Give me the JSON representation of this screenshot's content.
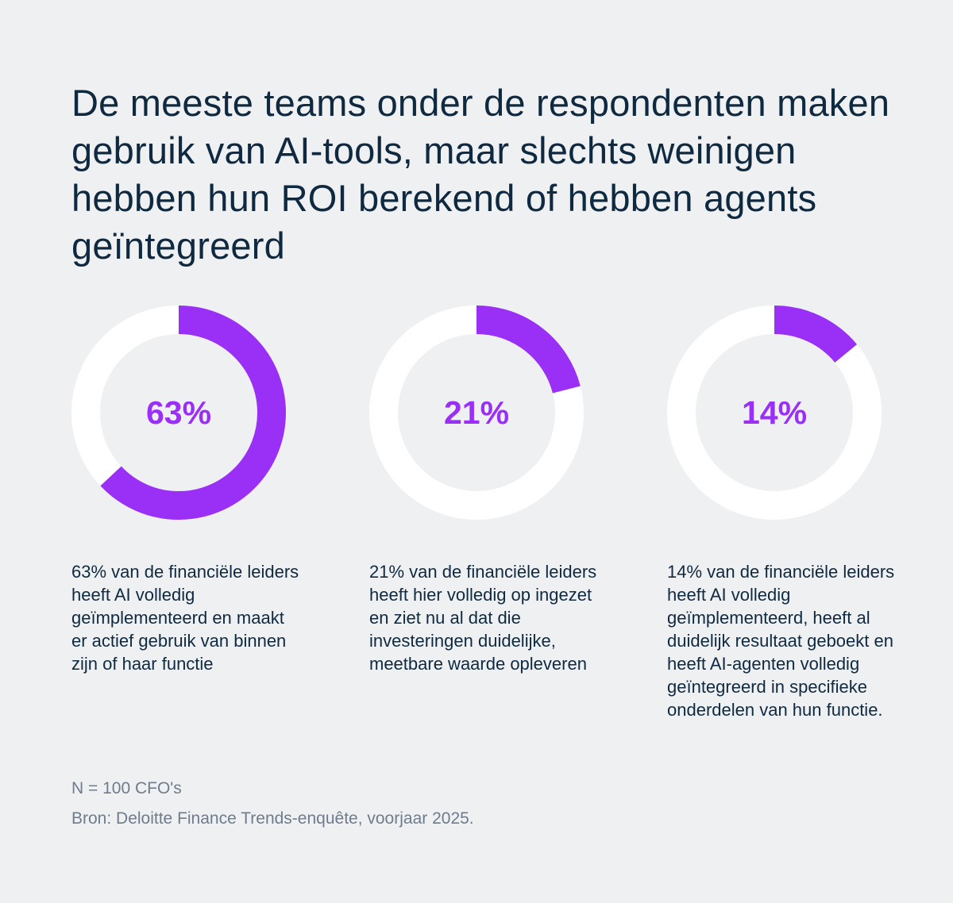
{
  "title": "De meeste teams onder de respondenten maken gebruik van AI-tools, maar slechts weinigen hebben hun ROI berekend of hebben agents geïntegreerd",
  "colors": {
    "background": "#eff0f2",
    "accent": "#9a2ff6",
    "track": "#ffffff",
    "text": "#0f2a40",
    "muted": "#6e7c8c"
  },
  "chart_data": [
    {
      "type": "pie",
      "variant": "donut",
      "value": 63,
      "max": 100,
      "label": "63%",
      "description": "63% van de financiële leiders heeft AI volledig geïmplementeerd en maakt er actief gebruik van binnen zijn of haar functie"
    },
    {
      "type": "pie",
      "variant": "donut",
      "value": 21,
      "max": 100,
      "label": "21%",
      "description": "21% van de financiële leiders heeft hier volledig op ingezet en ziet nu al dat die investeringen duidelijke, meetbare waarde opleveren"
    },
    {
      "type": "pie",
      "variant": "donut",
      "value": 14,
      "max": 100,
      "label": "14%",
      "description": "14% van de financiële leiders heeft AI volledig geïmplementeerd, heeft al duidelijk resultaat geboekt en heeft AI-agenten volledig geïntegreerd in specifieke onderdelen van hun functie."
    }
  ],
  "footnotes": {
    "sample": "N = 100 CFO's",
    "source": "Bron: Deloitte Finance Trends-enquête, voorjaar 2025."
  }
}
